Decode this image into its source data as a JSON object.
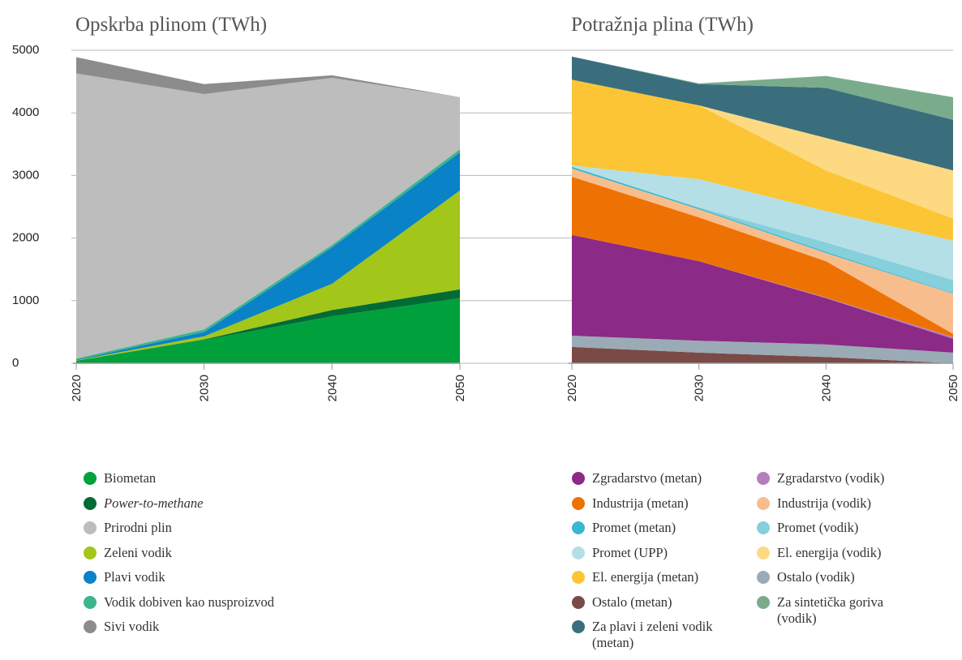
{
  "chart_data": [
    {
      "type": "stacked_area",
      "title": "Opskrba plinom (TWh)",
      "x": [
        2020,
        2030,
        2040,
        2050
      ],
      "xlim": [
        2020,
        2050
      ],
      "xticks": [
        2020,
        2030,
        2040,
        2050
      ],
      "ylim": [
        0,
        5000
      ],
      "yticks": [
        0,
        1000,
        2000,
        3000,
        4000,
        5000
      ],
      "grid": true,
      "stack_order": [
        0,
        1,
        3,
        4,
        5,
        2,
        6
      ],
      "series": [
        {
          "name": "Biometan",
          "color": "#00a03c",
          "values": [
            40,
            370,
            750,
            1040
          ]
        },
        {
          "name": "Power-to-methane",
          "color": "#006b35",
          "values": [
            0,
            10,
            100,
            140
          ]
        },
        {
          "name": "Prirodni plin",
          "color": "#bdbdbd",
          "values": [
            4555,
            3760,
            2670,
            830
          ]
        },
        {
          "name": "Zeleni vodik",
          "color": "#a3c61a",
          "values": [
            5,
            50,
            420,
            1580
          ]
        },
        {
          "name": "Plavi vodik",
          "color": "#0a82c8",
          "values": [
            10,
            70,
            580,
            610
          ]
        },
        {
          "name": "Vodik dobiven kao nusproizvod",
          "color": "#3bb58e",
          "values": [
            20,
            40,
            40,
            50
          ]
        },
        {
          "name": "Sivi vodik",
          "color": "#8c8c8c",
          "values": [
            260,
            160,
            40,
            0
          ]
        }
      ]
    },
    {
      "type": "stacked_area",
      "title": "Potražnja plina (TWh)",
      "x": [
        2020,
        2030,
        2040,
        2050
      ],
      "xlim": [
        2020,
        2050
      ],
      "xticks": [
        2020,
        2030,
        2040,
        2050
      ],
      "ylim": [
        0,
        5000
      ],
      "stack_order": [
        5,
        11,
        0,
        7,
        1,
        8,
        2,
        9,
        3,
        4,
        10,
        6,
        12
      ],
      "series": [
        {
          "name": "Zgradarstvo (metan)",
          "color": "#8b2a87",
          "values": [
            1610,
            1270,
            740,
            220
          ]
        },
        {
          "name": "Industrija (metan)",
          "color": "#ee7203",
          "values": [
            930,
            700,
            580,
            50
          ]
        },
        {
          "name": "Promet (metan)",
          "color": "#3bb8d0",
          "values": [
            30,
            20,
            20,
            10
          ]
        },
        {
          "name": "Promet (UPP)",
          "color": "#b5dfe6",
          "values": [
            20,
            450,
            500,
            630
          ]
        },
        {
          "name": "El. energija (metan)",
          "color": "#fbc535",
          "values": [
            1370,
            1180,
            650,
            350
          ]
        },
        {
          "name": "Ostalo (metan)",
          "color": "#7a4a47",
          "values": [
            260,
            170,
            100,
            0
          ]
        },
        {
          "name": "Za plavi i zeleni vodik (metan)",
          "color": "#3a6e7d",
          "values": [
            370,
            340,
            800,
            810
          ]
        },
        {
          "name": "Zgradarstvo (vodik)",
          "color": "#b57ebb",
          "values": [
            0,
            0,
            10,
            30
          ]
        },
        {
          "name": "Industrija (vodik)",
          "color": "#f8bd8c",
          "values": [
            130,
            130,
            130,
            640
          ]
        },
        {
          "name": "Promet (vodik)",
          "color": "#86cfdd",
          "values": [
            0,
            10,
            150,
            210
          ]
        },
        {
          "name": "El. energija (vodik)",
          "color": "#fdd982",
          "values": [
            0,
            0,
            520,
            770
          ]
        },
        {
          "name": "Ostalo (vodik)",
          "color": "#9aabb5",
          "values": [
            180,
            190,
            200,
            170
          ]
        },
        {
          "name": "Za sintetička goriva (vodik)",
          "color": "#7aac8c",
          "values": [
            0,
            10,
            190,
            360
          ]
        }
      ]
    }
  ]
}
